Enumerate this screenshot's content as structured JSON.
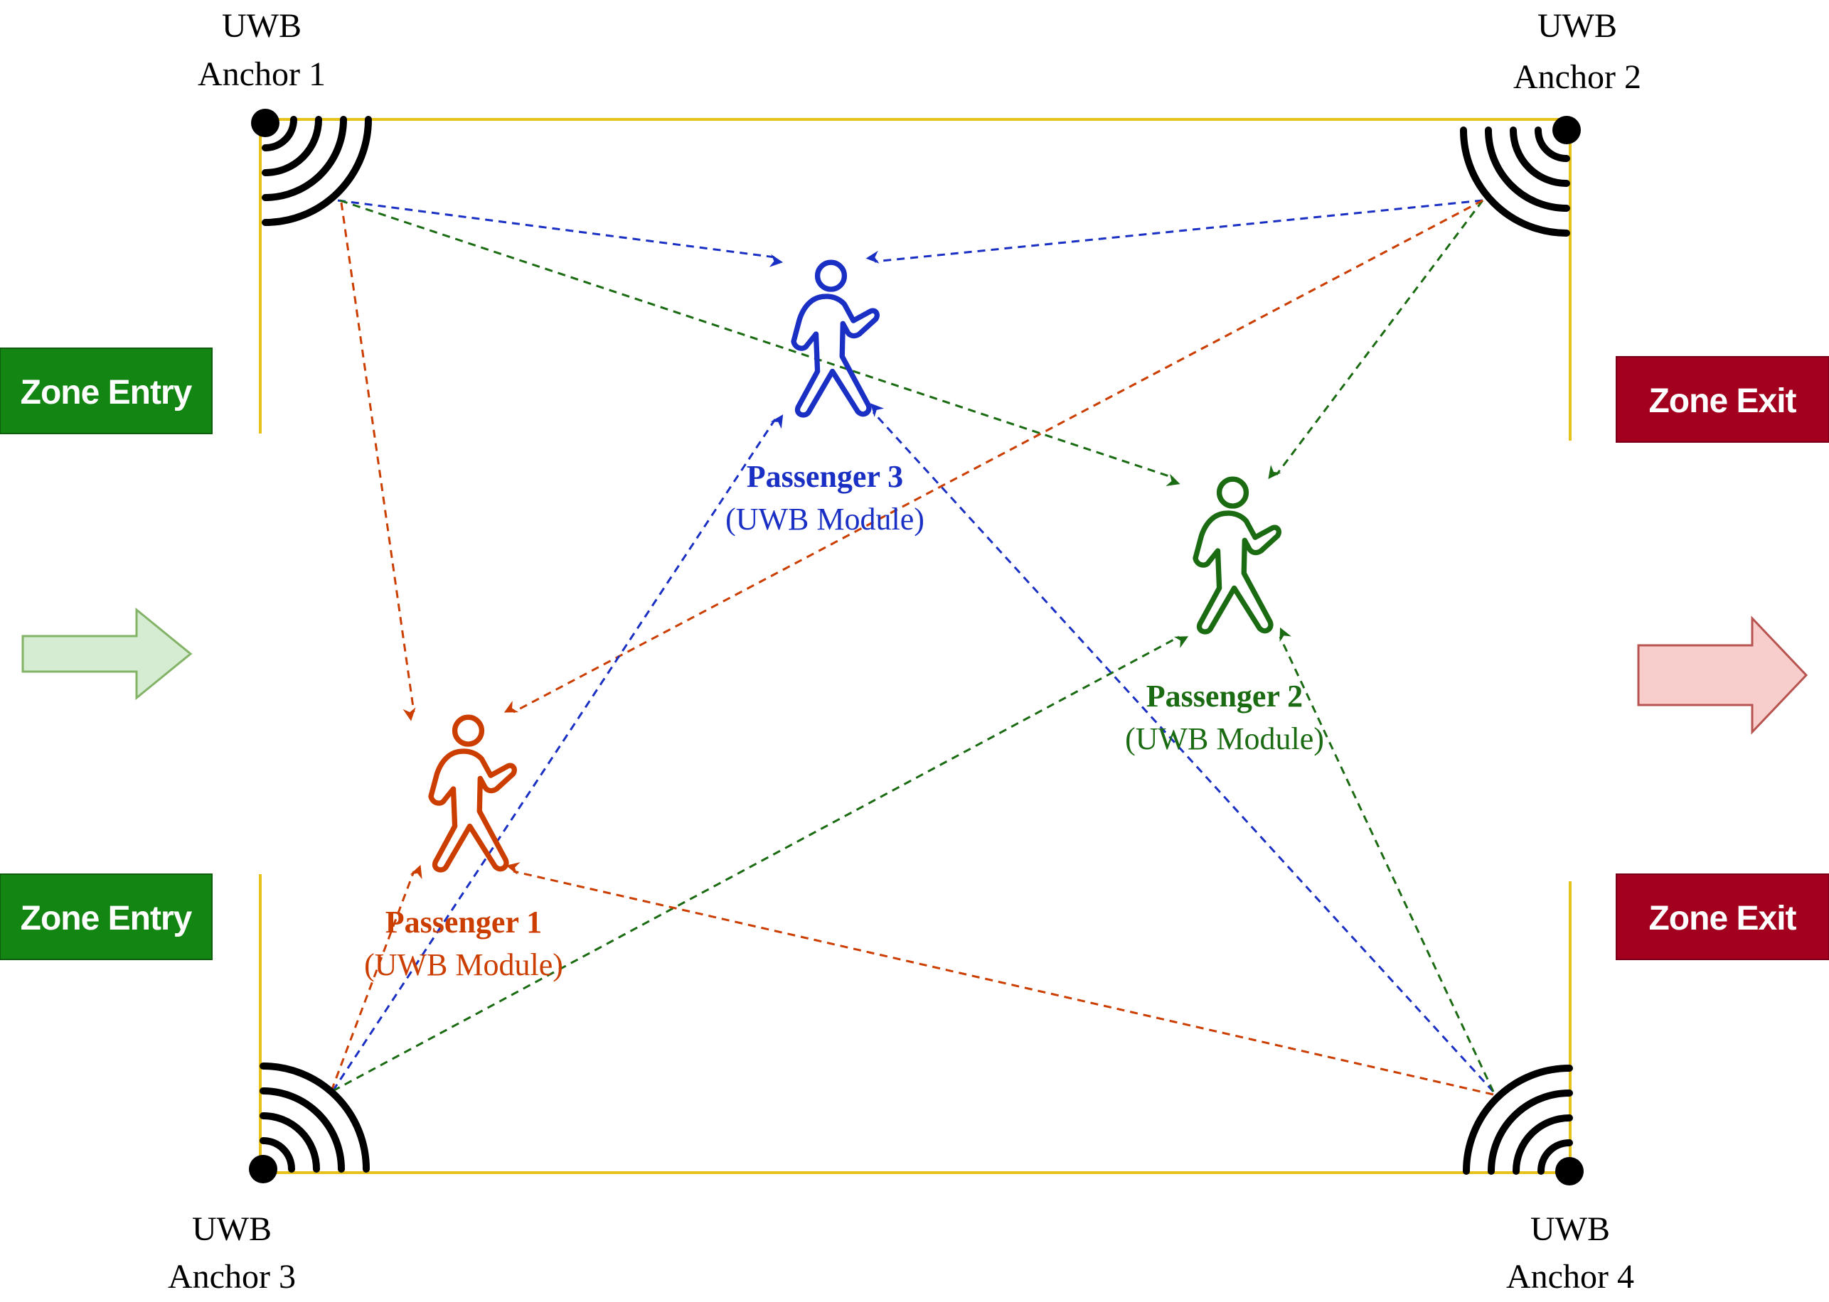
{
  "anchors": {
    "a1": {
      "line1": "UWB",
      "line2": "Anchor 1"
    },
    "a2": {
      "line1": "UWB",
      "line2": "Anchor 2"
    },
    "a3": {
      "line1": "UWB",
      "line2": "Anchor 3"
    },
    "a4": {
      "line1": "UWB",
      "line2": "Anchor 4"
    }
  },
  "zones": {
    "entry_label": "Zone Entry",
    "exit_label": "Zone Exit"
  },
  "passengers": {
    "p1": {
      "name": "Passenger 1",
      "module": "(UWB Module)",
      "color": "#cc3d00"
    },
    "p2": {
      "name": "Passenger 2",
      "module": "(UWB Module)",
      "color": "#1a6b12"
    },
    "p3": {
      "name": "Passenger 3",
      "module": "(UWB Module)",
      "color": "#1a2fc4"
    }
  },
  "colors": {
    "boundary": "#e6c21a",
    "entry_bg": "#128512",
    "exit_bg": "#a3001f",
    "entry_arrow_fill": "#d6ecd2",
    "entry_arrow_stroke": "#82b366",
    "exit_arrow_fill": "#f8cecc",
    "exit_arrow_stroke": "#b85450"
  }
}
